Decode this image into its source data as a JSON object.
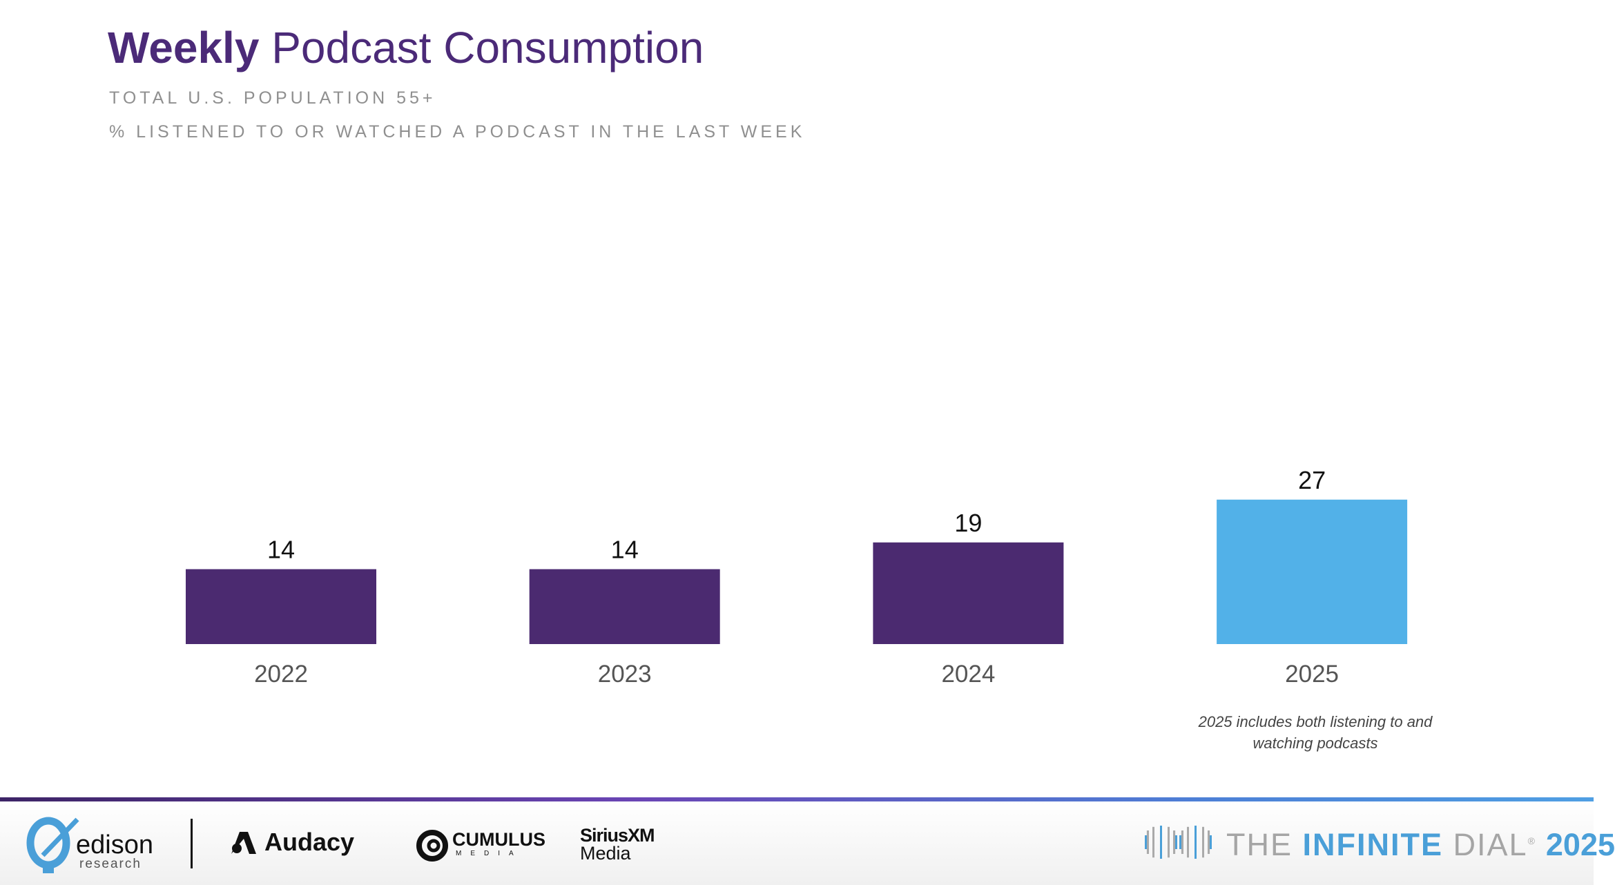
{
  "header": {
    "title_bold": "Weekly",
    "title_rest": "Podcast Consumption",
    "subtitle_1": "TOTAL U.S. POPULATION 55+",
    "subtitle_2": "% LISTENED TO OR WATCHED A PODCAST IN THE LAST WEEK"
  },
  "chart_data": {
    "type": "bar",
    "title": "Weekly Podcast Consumption",
    "categories": [
      "2022",
      "2023",
      "2024",
      "2025"
    ],
    "values": [
      14,
      14,
      19,
      27
    ],
    "colors": [
      "#4B2A70",
      "#4B2A70",
      "#4B2A70",
      "#52B1E8"
    ],
    "xlabel": "",
    "ylabel": "",
    "grid": false,
    "note": "2025 includes both listening to and watching podcasts"
  },
  "footer": {
    "edison": "edison",
    "edison_sub": "research",
    "audacy": "Audacy",
    "cumulus": "CUMULUS",
    "cumulus_sub": "MEDIA",
    "sirius": "SiriusXM",
    "sirius_sub": "Media",
    "dial_the": "THE",
    "dial_infinite": "INFINITE",
    "dial_dial": "DIAL",
    "dial_reg": "®",
    "dial_year": "2025"
  }
}
